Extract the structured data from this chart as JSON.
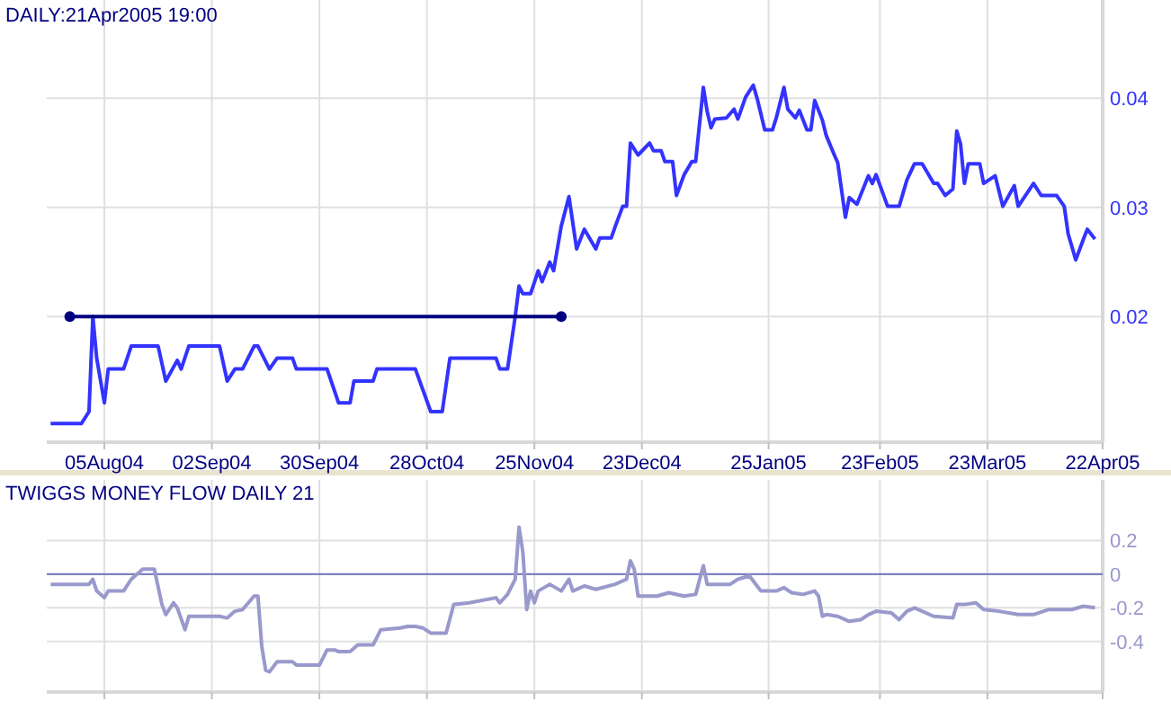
{
  "chart_data": [
    {
      "type": "line",
      "title": "DAILY:21Apr2005 19:00",
      "xlim": [
        "2004-07-21",
        "2005-04-22"
      ],
      "xticks": [
        {
          "value": "2004-08-05",
          "label": "05Aug04"
        },
        {
          "value": "2004-09-02",
          "label": "02Sep04"
        },
        {
          "value": "2004-09-30",
          "label": "30Sep04"
        },
        {
          "value": "2004-10-28",
          "label": "28Oct04"
        },
        {
          "value": "2004-11-25",
          "label": "25Nov04"
        },
        {
          "value": "2004-12-23",
          "label": "23Dec04"
        },
        {
          "value": "2005-01-25",
          "label": "25Jan05"
        },
        {
          "value": "2005-02-23",
          "label": "23Feb05"
        },
        {
          "value": "2005-03-23",
          "label": "23Mar05"
        },
        {
          "value": "2005-04-22",
          "label": "22Apr05"
        }
      ],
      "ylim": [
        0.0085,
        0.049
      ],
      "yticks": [
        0.02,
        0.03,
        0.04
      ],
      "grid": true,
      "series": [
        {
          "color": "#3333ff",
          "marker": "none",
          "x": [
            "2004-07-22",
            "2004-07-30",
            "2004-08-01",
            "2004-08-02",
            "2004-08-03",
            "2004-08-05",
            "2004-08-06",
            "2004-08-10",
            "2004-08-12",
            "2004-08-19",
            "2004-08-21",
            "2004-08-24",
            "2004-08-25",
            "2004-08-27",
            "2004-09-04",
            "2004-09-06",
            "2004-09-08",
            "2004-09-10",
            "2004-09-13",
            "2004-09-14",
            "2004-09-17",
            "2004-09-19",
            "2004-09-23",
            "2004-09-24",
            "2004-10-02",
            "2004-10-05",
            "2004-10-08",
            "2004-10-09",
            "2004-10-14",
            "2004-10-15",
            "2004-10-25",
            "2004-10-29",
            "2004-11-01",
            "2004-11-03",
            "2004-11-15",
            "2004-11-16",
            "2004-11-18",
            "2004-11-20",
            "2004-11-21",
            "2004-11-22",
            "2004-11-24",
            "2004-11-26",
            "2004-11-27",
            "2004-11-29",
            "2004-11-30",
            "2004-12-02",
            "2004-12-04",
            "2004-12-06",
            "2004-12-08",
            "2004-12-11",
            "2004-12-12",
            "2004-12-15",
            "2004-12-16",
            "2004-12-18",
            "2004-12-19",
            "2004-12-20",
            "2004-12-22",
            "2004-12-25",
            "2004-12-26",
            "2004-12-28",
            "2004-12-29",
            "2004-12-31",
            "2005-01-01",
            "2005-01-03",
            "2005-01-05",
            "2005-01-06",
            "2005-01-08",
            "2005-01-09",
            "2005-01-10",
            "2005-01-11",
            "2005-01-14",
            "2005-01-16",
            "2005-01-17",
            "2005-01-19",
            "2005-01-21",
            "2005-01-22",
            "2005-01-24",
            "2005-01-26",
            "2005-01-27",
            "2005-01-29",
            "2005-01-30",
            "2005-02-01",
            "2005-02-02",
            "2005-02-04",
            "2005-02-05",
            "2005-02-06",
            "2005-02-08",
            "2005-02-09",
            "2005-02-11",
            "2005-02-12",
            "2005-02-14",
            "2005-02-15",
            "2005-02-17",
            "2005-02-20",
            "2005-02-21",
            "2005-02-22",
            "2005-02-25",
            "2005-02-28",
            "2005-03-02",
            "2005-03-04",
            "2005-03-06",
            "2005-03-09",
            "2005-03-10",
            "2005-03-12",
            "2005-03-14",
            "2005-03-15",
            "2005-03-16",
            "2005-03-17",
            "2005-03-18",
            "2005-03-21",
            "2005-03-22",
            "2005-03-25",
            "2005-03-27",
            "2005-03-30",
            "2005-03-31",
            "2005-04-04",
            "2005-04-06",
            "2005-04-10",
            "2005-04-12",
            "2005-04-13",
            "2005-04-15",
            "2005-04-17",
            "2005-04-18",
            "2005-04-20"
          ],
          "values": [
            0.0102,
            0.0102,
            0.0113,
            0.02,
            0.0162,
            0.0121,
            0.0152,
            0.0152,
            0.0173,
            0.0173,
            0.0141,
            0.016,
            0.0152,
            0.0173,
            0.0173,
            0.0141,
            0.0152,
            0.0152,
            0.0173,
            0.0173,
            0.0152,
            0.0162,
            0.0162,
            0.0152,
            0.0152,
            0.0121,
            0.0121,
            0.0141,
            0.0141,
            0.0152,
            0.0152,
            0.0113,
            0.0113,
            0.0162,
            0.0162,
            0.0152,
            0.0152,
            0.02,
            0.0228,
            0.0221,
            0.0221,
            0.0242,
            0.0232,
            0.025,
            0.0242,
            0.0283,
            0.031,
            0.0262,
            0.028,
            0.0262,
            0.0272,
            0.0272,
            0.0282,
            0.0301,
            0.0301,
            0.0359,
            0.0348,
            0.0359,
            0.0352,
            0.0352,
            0.0342,
            0.0342,
            0.0311,
            0.033,
            0.0342,
            0.0342,
            0.041,
            0.0388,
            0.0373,
            0.0381,
            0.0382,
            0.039,
            0.0381,
            0.0401,
            0.0412,
            0.04,
            0.0371,
            0.0371,
            0.0382,
            0.041,
            0.039,
            0.0382,
            0.0389,
            0.0371,
            0.0371,
            0.0398,
            0.038,
            0.0366,
            0.0349,
            0.0341,
            0.0291,
            0.0309,
            0.0303,
            0.0329,
            0.0322,
            0.033,
            0.0301,
            0.0301,
            0.0325,
            0.034,
            0.034,
            0.0322,
            0.0322,
            0.0311,
            0.0317,
            0.037,
            0.0358,
            0.0322,
            0.034,
            0.034,
            0.0322,
            0.0329,
            0.0301,
            0.032,
            0.0301,
            0.0322,
            0.0311,
            0.0311,
            0.0301,
            0.0276,
            0.0252,
            0.0271,
            0.028,
            0.0271
          ]
        },
        {
          "type": "line",
          "color": "#000080",
          "marker": "circle",
          "x": [
            "2004-07-27",
            "2004-12-02"
          ],
          "values": [
            0.02,
            0.02
          ]
        }
      ]
    },
    {
      "type": "line",
      "title": "TWIGGS MONEY FLOW DAILY 21",
      "tick_labels": "y",
      "xlim": [
        "2004-07-21",
        "2005-04-22"
      ],
      "xticks": [
        {
          "value": "2004-08-05",
          "label": null
        },
        {
          "value": "2004-09-02",
          "label": null
        },
        {
          "value": "2004-09-30",
          "label": null
        },
        {
          "value": "2004-10-28",
          "label": null
        },
        {
          "value": "2004-11-25",
          "label": null
        },
        {
          "value": "2004-12-23",
          "label": null
        },
        {
          "value": "2005-01-25",
          "label": null
        },
        {
          "value": "2005-02-23",
          "label": null
        },
        {
          "value": "2005-03-23",
          "label": null
        },
        {
          "value": "2005-04-22",
          "label": null
        }
      ],
      "ylim": [
        -0.7,
        0.56
      ],
      "yticks": [
        -0.4,
        -0.2,
        0,
        0.2
      ],
      "grid": true,
      "ref_lines": [
        {
          "axis": "y",
          "value": 0,
          "color": "#8080c0"
        }
      ],
      "series": [
        {
          "color": "#9999cc",
          "x": [
            "2004-07-22",
            "2004-08-01",
            "2004-08-02",
            "2004-08-03",
            "2004-08-05",
            "2004-08-06",
            "2004-08-10",
            "2004-08-12",
            "2004-08-15",
            "2004-08-18",
            "2004-08-20",
            "2004-08-21",
            "2004-08-23",
            "2004-08-24",
            "2004-08-26",
            "2004-08-27",
            "2004-09-04",
            "2004-09-06",
            "2004-09-08",
            "2004-09-10",
            "2004-09-13",
            "2004-09-14",
            "2004-09-15",
            "2004-09-16",
            "2004-09-17",
            "2004-09-19",
            "2004-09-23",
            "2004-09-24",
            "2004-09-30",
            "2004-10-02",
            "2004-10-04",
            "2004-10-05",
            "2004-10-08",
            "2004-10-10",
            "2004-10-14",
            "2004-10-16",
            "2004-10-21",
            "2004-10-23",
            "2004-10-25",
            "2004-10-27",
            "2004-10-29",
            "2004-11-02",
            "2004-11-04",
            "2004-11-08",
            "2004-11-15",
            "2004-11-16",
            "2004-11-18",
            "2004-11-20",
            "2004-11-21",
            "2004-11-22",
            "2004-11-23",
            "2004-11-24",
            "2004-11-25",
            "2004-11-26",
            "2004-11-29",
            "2004-12-02",
            "2004-12-04",
            "2004-12-05",
            "2004-12-08",
            "2004-12-11",
            "2004-12-16",
            "2004-12-19",
            "2004-12-20",
            "2004-12-21",
            "2004-12-22",
            "2004-12-27",
            "2004-12-30",
            "2005-01-03",
            "2005-01-06",
            "2005-01-08",
            "2005-01-09",
            "2005-01-15",
            "2005-01-17",
            "2005-01-20",
            "2005-01-23",
            "2005-01-27",
            "2005-01-29",
            "2005-01-31",
            "2005-02-03",
            "2005-02-06",
            "2005-02-07",
            "2005-02-08",
            "2005-02-09",
            "2005-02-12",
            "2005-02-15",
            "2005-02-18",
            "2005-02-20",
            "2005-02-22",
            "2005-02-26",
            "2005-02-28",
            "2005-03-02",
            "2005-03-04",
            "2005-03-09",
            "2005-03-14",
            "2005-03-15",
            "2005-03-17",
            "2005-03-20",
            "2005-03-22",
            "2005-03-26",
            "2005-03-31",
            "2005-04-04",
            "2005-04-08",
            "2005-04-14",
            "2005-04-17",
            "2005-04-20"
          ],
          "values": [
            -0.06,
            -0.06,
            -0.03,
            -0.1,
            -0.14,
            -0.1,
            -0.1,
            -0.03,
            0.03,
            0.03,
            -0.18,
            -0.24,
            -0.17,
            -0.2,
            -0.33,
            -0.25,
            -0.25,
            -0.26,
            -0.22,
            -0.21,
            -0.13,
            -0.13,
            -0.43,
            -0.57,
            -0.58,
            -0.52,
            -0.52,
            -0.54,
            -0.54,
            -0.45,
            -0.45,
            -0.46,
            -0.46,
            -0.42,
            -0.42,
            -0.33,
            -0.32,
            -0.31,
            -0.31,
            -0.32,
            -0.35,
            -0.35,
            -0.18,
            -0.17,
            -0.14,
            -0.17,
            -0.12,
            -0.03,
            0.28,
            0.13,
            -0.21,
            -0.1,
            -0.17,
            -0.1,
            -0.06,
            -0.1,
            -0.03,
            -0.1,
            -0.07,
            -0.09,
            -0.06,
            -0.03,
            0.08,
            0.03,
            -0.13,
            -0.13,
            -0.11,
            -0.13,
            -0.12,
            0.05,
            -0.06,
            -0.06,
            -0.03,
            -0.01,
            -0.1,
            -0.1,
            -0.08,
            -0.11,
            -0.12,
            -0.1,
            -0.13,
            -0.25,
            -0.24,
            -0.25,
            -0.28,
            -0.27,
            -0.24,
            -0.22,
            -0.23,
            -0.27,
            -0.22,
            -0.2,
            -0.25,
            -0.26,
            -0.18,
            -0.18,
            -0.17,
            -0.21,
            -0.22,
            -0.24,
            -0.24,
            -0.21,
            -0.21,
            -0.19,
            -0.2
          ]
        }
      ]
    }
  ]
}
